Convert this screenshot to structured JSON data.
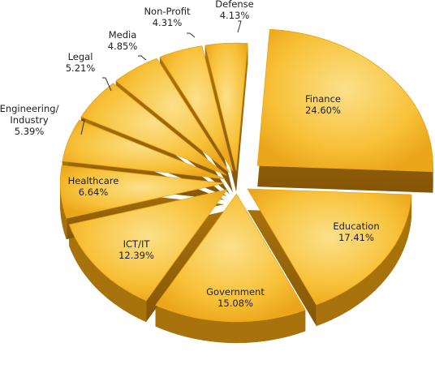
{
  "chart_data": {
    "type": "pie",
    "style": "exploded-3d",
    "title": "",
    "categories": [
      "Finance",
      "Education",
      "Government",
      "ICT/IT",
      "Healthcare",
      "Engineering/ Industry",
      "Legal",
      "Media",
      "Non-Profit",
      "Defense"
    ],
    "values": [
      24.6,
      17.41,
      15.08,
      12.39,
      6.64,
      5.39,
      5.21,
      4.85,
      4.31,
      4.13
    ],
    "value_labels": [
      "24.60%",
      "17.41%",
      "15.08%",
      "12.39%",
      "6.64%",
      "5.39%",
      "5.21%",
      "4.85%",
      "4.31%",
      "4.13%"
    ],
    "slices": [
      {
        "label": "Finance",
        "value_label": "24.60%"
      },
      {
        "label": "Education",
        "value_label": "17.41%"
      },
      {
        "label": "Government",
        "value_label": "15.08%"
      },
      {
        "label": "ICT/IT",
        "value_label": "12.39%"
      },
      {
        "label": "Healthcare",
        "value_label": "6.64%"
      },
      {
        "label": "Engineering/ Industry",
        "value_label": "5.39%"
      },
      {
        "label": "Legal",
        "value_label": "5.21%"
      },
      {
        "label": "Media",
        "value_label": "4.85%"
      },
      {
        "label": "Non-Profit",
        "value_label": "4.31%"
      },
      {
        "label": "Defense",
        "value_label": "4.13%"
      }
    ],
    "legend": "none",
    "grid": false
  },
  "colors": {
    "top_light": "#fce08a",
    "top_mid": "#f8c23a",
    "top_dark": "#eba61a",
    "side": "#a8720c",
    "side_dark": "#855606",
    "leader": "#333333"
  }
}
